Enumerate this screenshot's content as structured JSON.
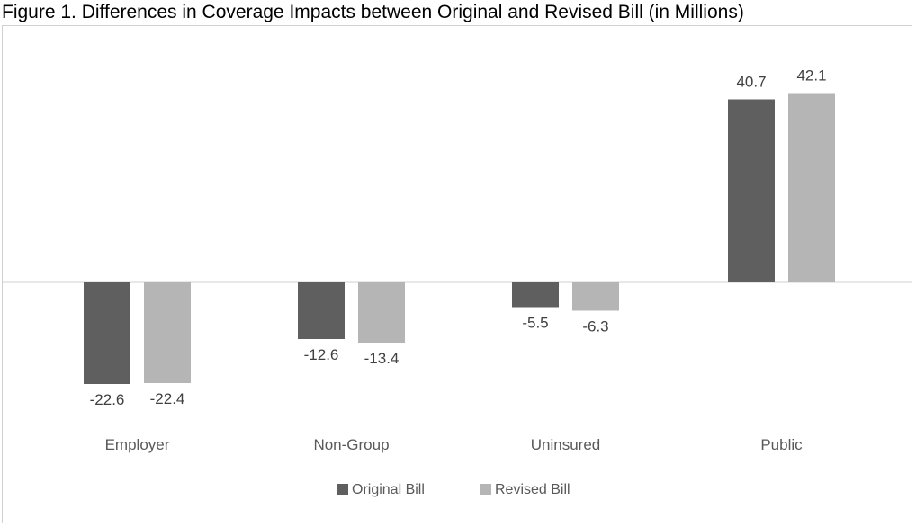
{
  "title": "Figure 1. Differences in Coverage Impacts between Original and Revised Bill (in Millions)",
  "colors": {
    "original": "#5f5f5f",
    "revised": "#b5b5b5",
    "axis": "#d0d0d0"
  },
  "chart_data": {
    "type": "bar",
    "title": "Figure 1. Differences in Coverage Impacts between Original and Revised Bill (in Millions)",
    "categories": [
      "Employer",
      "Non-Group",
      "Uninsured",
      "Public"
    ],
    "series": [
      {
        "name": "Original Bill",
        "values": [
          -22.6,
          -12.6,
          -5.5,
          40.7
        ],
        "labels": [
          "-22.6",
          "-12.6",
          "-5.5",
          "40.7"
        ]
      },
      {
        "name": "Revised Bill",
        "values": [
          -22.4,
          -13.4,
          -6.3,
          42.1
        ],
        "labels": [
          "-22.4",
          "-13.4",
          "-6.3",
          "42.1"
        ]
      }
    ],
    "xlabel": "",
    "ylabel": "",
    "grid": false,
    "legend": "bottom"
  }
}
